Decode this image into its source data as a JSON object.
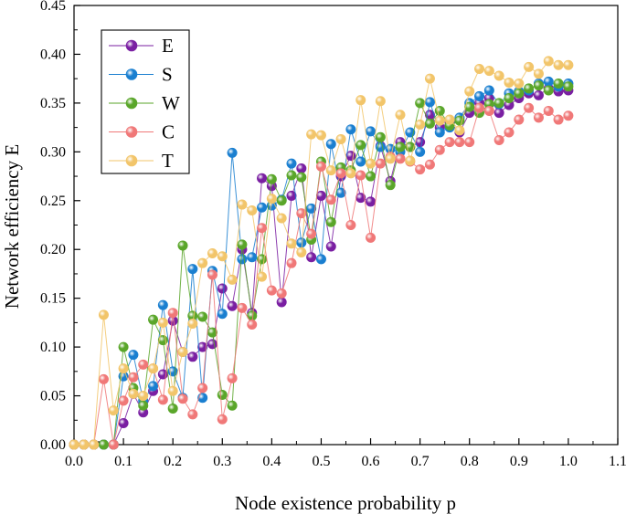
{
  "chart_data": {
    "type": "line",
    "xlabel": "Node existence probability p",
    "ylabel": "Network efficiency E",
    "xlim": [
      0.0,
      1.1
    ],
    "ylim": [
      0.0,
      0.45
    ],
    "xticks": [
      "0.0",
      "0.1",
      "0.2",
      "0.3",
      "0.4",
      "0.5",
      "0.6",
      "0.7",
      "0.8",
      "0.9",
      "1.0",
      "1.1"
    ],
    "yticks": [
      "0.00",
      "0.05",
      "0.10",
      "0.15",
      "0.20",
      "0.25",
      "0.30",
      "0.35",
      "0.40",
      "0.45"
    ],
    "grid": false,
    "legend_position": "top-left",
    "x": [
      0.0,
      0.02,
      0.04,
      0.06,
      0.08,
      0.1,
      0.12,
      0.14,
      0.16,
      0.18,
      0.2,
      0.22,
      0.24,
      0.26,
      0.28,
      0.3,
      0.32,
      0.34,
      0.36,
      0.38,
      0.4,
      0.42,
      0.44,
      0.46,
      0.48,
      0.5,
      0.52,
      0.54,
      0.56,
      0.58,
      0.6,
      0.62,
      0.64,
      0.66,
      0.68,
      0.7,
      0.72,
      0.74,
      0.76,
      0.78,
      0.8,
      0.82,
      0.84,
      0.86,
      0.88,
      0.9,
      0.92,
      0.94,
      0.96,
      0.98,
      1.0
    ],
    "series": [
      {
        "name": "E",
        "color": "#7a1fa2",
        "values": [
          0,
          0,
          0,
          0,
          0,
          0.022,
          0.052,
          0.033,
          0.055,
          0.072,
          0.127,
          0.095,
          0.09,
          0.1,
          0.103,
          0.16,
          0.142,
          0.2,
          0.135,
          0.273,
          0.265,
          0.146,
          0.255,
          0.283,
          0.192,
          0.255,
          0.203,
          0.275,
          0.296,
          0.253,
          0.249,
          0.306,
          0.27,
          0.31,
          0.305,
          0.31,
          0.338,
          0.325,
          0.33,
          0.32,
          0.34,
          0.35,
          0.355,
          0.34,
          0.348,
          0.355,
          0.36,
          0.358,
          0.365,
          0.362,
          0.363
        ]
      },
      {
        "name": "S",
        "color": "#1a7fd0",
        "values": [
          0,
          0,
          0,
          0,
          0,
          0.07,
          0.092,
          0.045,
          0.06,
          0.143,
          0.075,
          0.048,
          0.18,
          0.048,
          0.178,
          0.134,
          0.299,
          0.19,
          0.192,
          0.243,
          0.245,
          0.251,
          0.288,
          0.207,
          0.242,
          0.19,
          0.308,
          0.258,
          0.323,
          0.29,
          0.321,
          0.305,
          0.303,
          0.3,
          0.32,
          0.3,
          0.351,
          0.32,
          0.325,
          0.335,
          0.35,
          0.357,
          0.363,
          0.349,
          0.36,
          0.362,
          0.363,
          0.37,
          0.372,
          0.367,
          0.37
        ]
      },
      {
        "name": "W",
        "color": "#5aa62a",
        "values": [
          0,
          0,
          0,
          0,
          0,
          0.1,
          0.058,
          0.04,
          0.128,
          0.107,
          0.037,
          0.204,
          0.132,
          0.131,
          0.115,
          0.051,
          0.04,
          0.205,
          0.132,
          0.19,
          0.272,
          0.25,
          0.276,
          0.274,
          0.21,
          0.29,
          0.228,
          0.284,
          0.281,
          0.307,
          0.275,
          0.315,
          0.266,
          0.305,
          0.305,
          0.35,
          0.329,
          0.342,
          0.327,
          0.332,
          0.346,
          0.34,
          0.349,
          0.35,
          0.355,
          0.36,
          0.365,
          0.368,
          0.363,
          0.37,
          0.367
        ]
      },
      {
        "name": "C",
        "color": "#f07878",
        "values": [
          0,
          0,
          0,
          0.067,
          0,
          0.045,
          0.069,
          0.082,
          0.078,
          0.046,
          0.135,
          0.047,
          0.031,
          0.058,
          0.174,
          0.026,
          0.068,
          0.14,
          0.123,
          0.222,
          0.158,
          0.155,
          0.186,
          0.237,
          0.216,
          0.285,
          0.251,
          0.278,
          0.225,
          0.276,
          0.212,
          0.288,
          0.295,
          0.293,
          0.29,
          0.282,
          0.287,
          0.302,
          0.31,
          0.31,
          0.31,
          0.345,
          0.342,
          0.312,
          0.32,
          0.333,
          0.345,
          0.335,
          0.342,
          0.333,
          0.337
        ]
      },
      {
        "name": "T",
        "color": "#f2c56a",
        "values": [
          0,
          0,
          0,
          0.133,
          0.035,
          0.078,
          0.052,
          0.05,
          0.078,
          0.125,
          0.055,
          0.095,
          0.124,
          0.186,
          0.196,
          0.193,
          0.169,
          0.246,
          0.24,
          0.172,
          0.252,
          0.232,
          0.206,
          0.197,
          0.318,
          0.317,
          0.281,
          0.313,
          0.278,
          0.353,
          0.288,
          0.352,
          0.293,
          0.338,
          0.291,
          0.328,
          0.375,
          0.332,
          0.333,
          0.322,
          0.362,
          0.385,
          0.383,
          0.378,
          0.371,
          0.37,
          0.387,
          0.38,
          0.393,
          0.389,
          0.389
        ]
      }
    ]
  }
}
